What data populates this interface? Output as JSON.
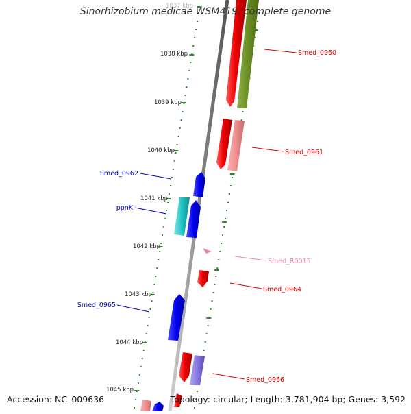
{
  "title": "Sinorhizobium medicae WSM419, complete genome",
  "footer": {
    "accession": "Accession: NC_009636",
    "topology": "Topology: circular; Length: 3,781,904 bp; Genes: 3,592"
  },
  "colors": {
    "backbone": "#8a8a8a",
    "tick": "#2e8b2e",
    "forward_cds": "#0000ee",
    "reverse_cds": "#ee0000",
    "rrna": "#ee88aa"
  },
  "scale_labels": [
    "1037 kbp",
    "1038 kbp",
    "1039 kbp",
    "1040 kbp",
    "1041 kbp",
    "1042 kbp",
    "1043 kbp",
    "1044 kbp",
    "1045 kbp"
  ],
  "gene_labels": [
    {
      "text": "Smed_0960",
      "color": "#dd0000"
    },
    {
      "text": "Smed_0961",
      "color": "#dd0000"
    },
    {
      "text": "Smed_0962",
      "color": "#0000bb"
    },
    {
      "text": "ppnK",
      "color": "#0000bb"
    },
    {
      "text": "Smed_R0015",
      "color": "#ee88aa"
    },
    {
      "text": "Smed_0964",
      "color": "#dd0000"
    },
    {
      "text": "Smed_0965",
      "color": "#0000bb"
    },
    {
      "text": "Smed_0966",
      "color": "#dd0000"
    }
  ]
}
